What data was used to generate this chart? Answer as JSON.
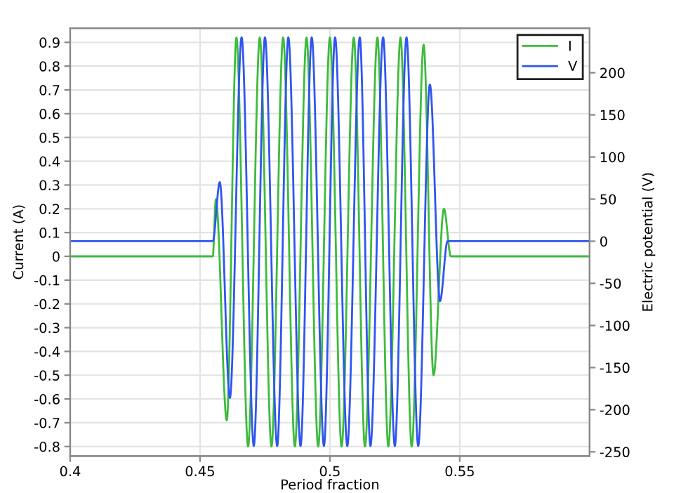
{
  "chart_data": {
    "type": "line",
    "xlabel": "Period fraction",
    "ylabel": "Current (A)",
    "y2label": "Electric potential (V)",
    "xlim": [
      0.4,
      0.6
    ],
    "xticks": [
      0.4,
      0.45,
      0.5,
      0.55
    ],
    "ylim": [
      -0.84,
      0.96
    ],
    "yticks": [
      -0.8,
      -0.7,
      -0.6,
      -0.5,
      -0.4,
      -0.3,
      -0.2,
      -0.1,
      0,
      0.1,
      0.2,
      0.3,
      0.4,
      0.5,
      0.6,
      0.7,
      0.8,
      0.9
    ],
    "y2lim": [
      -255,
      253
    ],
    "y2ticks": [
      -250,
      -200,
      -150,
      -100,
      -50,
      0,
      50,
      100,
      150,
      200
    ],
    "grid": true,
    "legend": "top right",
    "marker": "none",
    "line_style": "solid",
    "series": [
      {
        "name": "I",
        "color": "#3dbb3d",
        "axis": "y",
        "x": [
          0.4,
          0.4549,
          0.4561,
          0.4603,
          0.464,
          0.4685,
          0.473,
          0.4775,
          0.482,
          0.4865,
          0.491,
          0.4955,
          0.5,
          0.5045,
          0.5092,
          0.5135,
          0.5183,
          0.5225,
          0.5272,
          0.5315,
          0.5361,
          0.5399,
          0.5439,
          0.5466,
          0.6
        ],
        "values": [
          0,
          0,
          0.24,
          -0.69,
          0.92,
          -0.8,
          0.92,
          -0.8,
          0.92,
          -0.8,
          0.92,
          -0.8,
          0.92,
          -0.8,
          0.92,
          -0.8,
          0.92,
          -0.8,
          0.92,
          -0.8,
          0.89,
          -0.5,
          0.2,
          0,
          0
        ]
      },
      {
        "name": "V",
        "color": "#2f55f0",
        "axis": "y2",
        "x": [
          0.4,
          0.4549,
          0.4576,
          0.4615,
          0.466,
          0.4707,
          0.475,
          0.4797,
          0.484,
          0.4887,
          0.493,
          0.4977,
          0.502,
          0.5067,
          0.5115,
          0.5156,
          0.5205,
          0.525,
          0.5295,
          0.534,
          0.5385,
          0.5424,
          0.5453,
          0.6
        ],
        "values": [
          0,
          0,
          70,
          -186,
          242,
          -243,
          242,
          -243,
          242,
          -243,
          242,
          -243,
          242,
          -243,
          242,
          -243,
          242,
          -243,
          242,
          -243,
          186,
          -71,
          0,
          0
        ]
      }
    ]
  }
}
